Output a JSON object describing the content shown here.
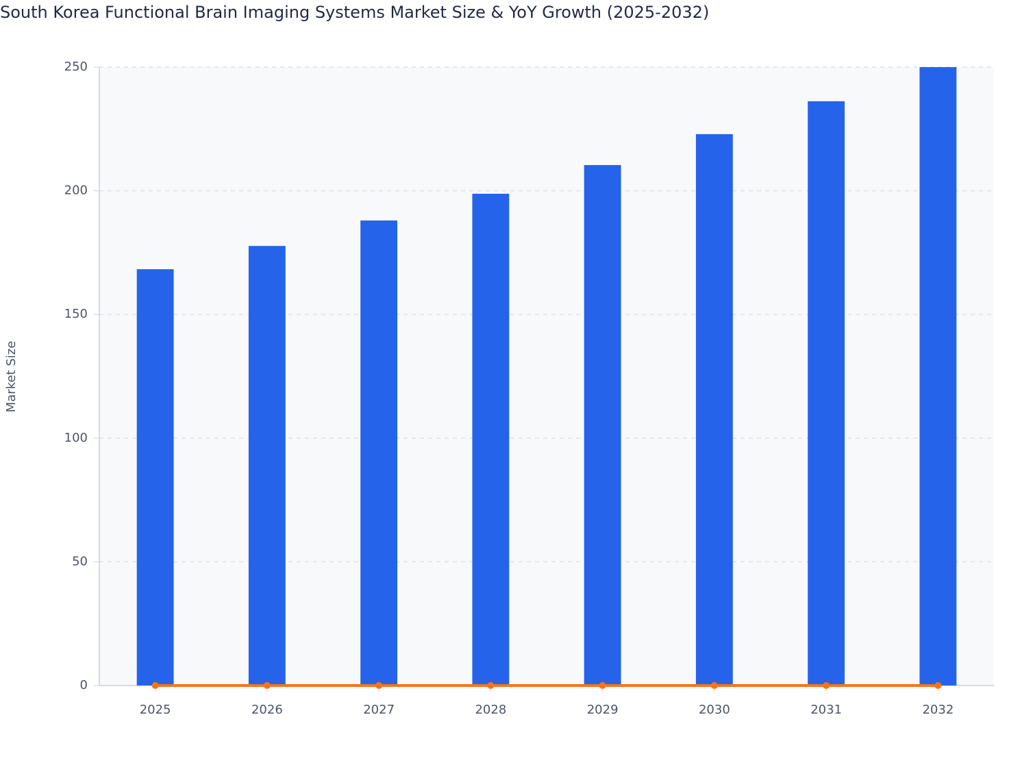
{
  "chart_data": {
    "type": "bar",
    "title": "South Korea Functional Brain Imaging Systems Market Size & YoY Growth (2025-2032)",
    "y_label": "Market Size",
    "categories": [
      "2025",
      "2026",
      "2027",
      "2028",
      "2029",
      "2030",
      "2031",
      "2032"
    ],
    "series": [
      {
        "type": "bar",
        "color": "#2563eb",
        "values": [
          168.3,
          177.7,
          188.0,
          198.8,
          210.4,
          222.9,
          236.2,
          250
        ]
      },
      {
        "type": "line",
        "color": "#f97316",
        "values": [
          0,
          0,
          0,
          0,
          0,
          0,
          0,
          0
        ]
      }
    ],
    "ylim": [
      0,
      250
    ],
    "yticks": [
      0,
      50,
      100,
      150,
      200,
      250
    ],
    "grid": true
  }
}
